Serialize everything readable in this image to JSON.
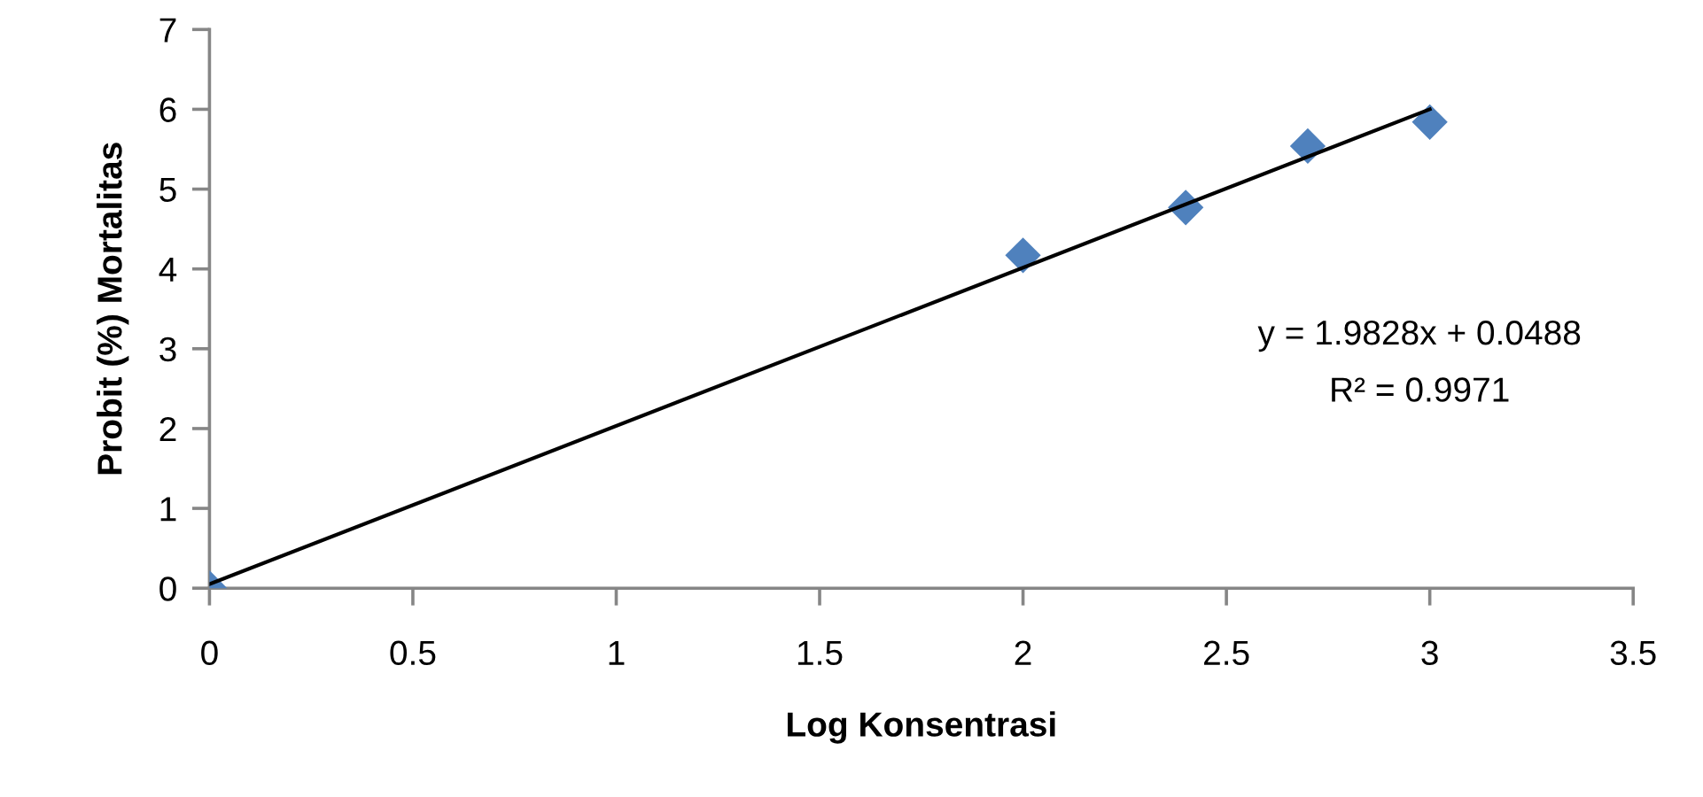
{
  "chart_data": {
    "type": "scatter",
    "xlabel": "Log Konsentrasi",
    "ylabel": "Probit (%) Mortalitas",
    "xlim": [
      0,
      3.5
    ],
    "xticks": [
      0,
      0.5,
      1,
      1.5,
      2,
      2.5,
      3,
      3.5
    ],
    "ylim": [
      0,
      7
    ],
    "yticks": [
      0,
      1,
      2,
      3,
      4,
      5,
      6,
      7
    ],
    "grid": false,
    "series": [
      {
        "color": "#4f81bd",
        "marker": "diamond",
        "x": [
          0,
          2,
          2.4,
          2.7,
          3
        ],
        "values": [
          0,
          4.17,
          4.77,
          5.54,
          5.84
        ]
      },
      {
        "type": "line",
        "color": "#000000",
        "marker": "none",
        "line_style": "solid",
        "x": [
          0,
          3
        ],
        "values": [
          0.05,
          6.0
        ]
      }
    ],
    "annotations": [
      "y = 1.9828x + 0.0488",
      "R² = 0.9971"
    ]
  }
}
